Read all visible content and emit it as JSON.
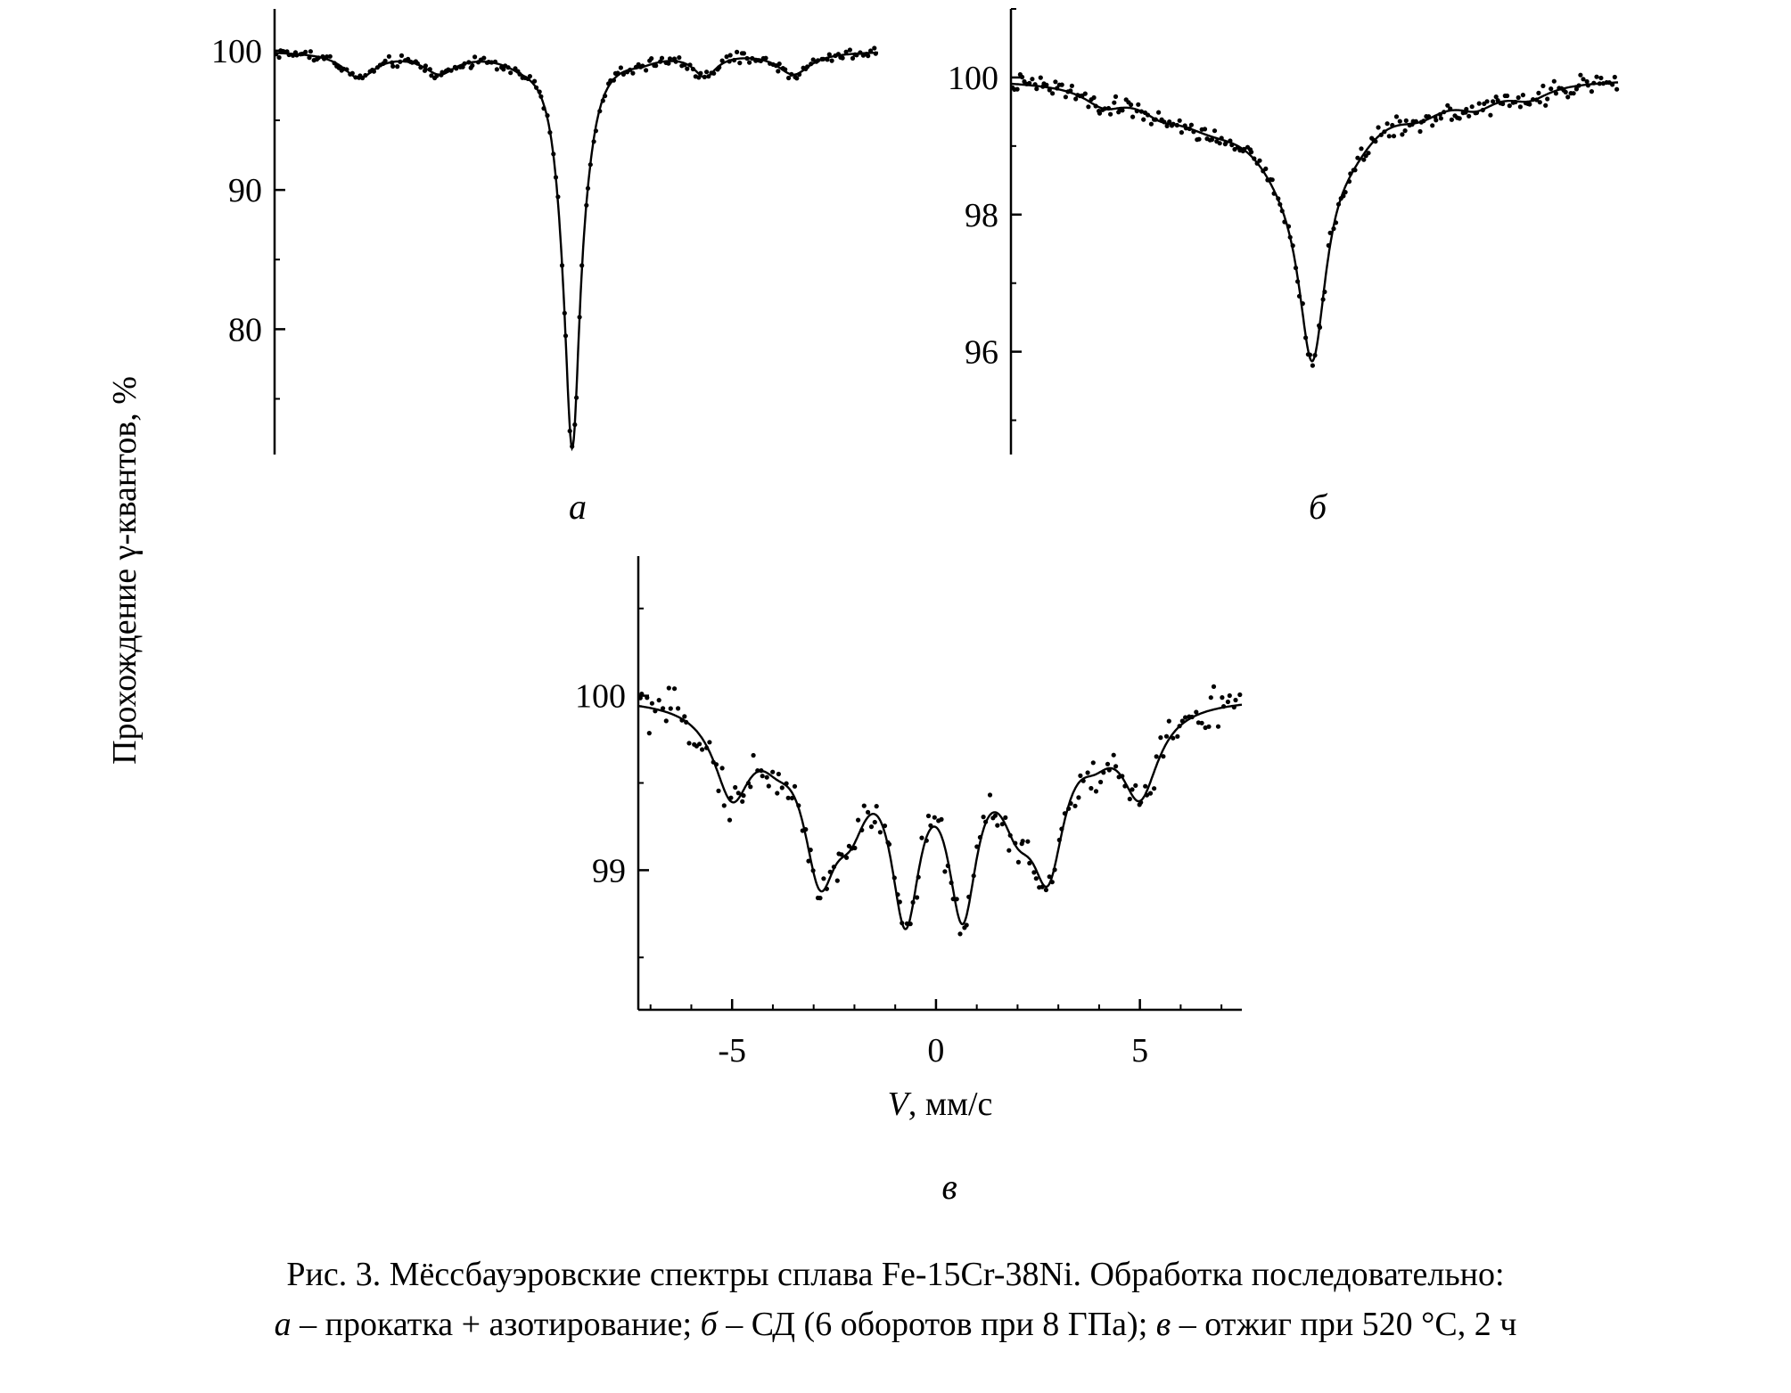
{
  "figure": {
    "shared_ylabel": "Прохождение γ-квантов, %",
    "caption": {
      "line1": "Рис. 3. Мёссбауэровские спектры сплава Fe-15Cr-38Ni. Обработка последовательно:",
      "line2_parts": [
        {
          "text": "а",
          "italic": true
        },
        {
          "text": " – прокатка + азотирование; ",
          "italic": false
        },
        {
          "text": "б",
          "italic": true
        },
        {
          "text": " – СД (6 оборотов при 8 ГПа); ",
          "italic": false
        },
        {
          "text": "в",
          "italic": true
        },
        {
          "text": " – отжиг при 520 °С, 2 ч",
          "italic": false
        }
      ]
    }
  },
  "chart_data": [
    {
      "type": "scatter",
      "panel": "а",
      "xlabel": "",
      "ylabel": "Прохождение γ-квантов, %",
      "xlim": [
        -7.5,
        7.5
      ],
      "ylim": [
        71,
        103
      ],
      "yticks": [
        80,
        90,
        100
      ],
      "ytick_labels": [
        "80",
        "90",
        "100"
      ],
      "xticks": [],
      "fit": {
        "baseline": 100,
        "lines": [
          {
            "x": -0.1,
            "depth": 26.0,
            "width": 0.24
          },
          {
            "x": -0.35,
            "depth": 2.6,
            "width": 0.3
          },
          {
            "x": 0.25,
            "depth": 2.0,
            "width": 0.3
          },
          {
            "x": -5.4,
            "depth": 1.8,
            "width": 0.5
          },
          {
            "x": -3.4,
            "depth": 1.4,
            "width": 0.5
          },
          {
            "x": -1.4,
            "depth": 0.4,
            "width": 0.5
          },
          {
            "x": 3.2,
            "depth": 1.6,
            "width": 0.35
          },
          {
            "x": 5.4,
            "depth": 1.6,
            "width": 0.5
          },
          {
            "x": 1.6,
            "depth": 0.4,
            "width": 0.5
          }
        ]
      },
      "scatter": {
        "n": 220,
        "noise": 0.35
      }
    },
    {
      "type": "scatter",
      "panel": "б",
      "xlabel": "",
      "ylabel": "",
      "xlim": [
        -7.5,
        7.5
      ],
      "ylim": [
        94.5,
        101.0
      ],
      "yticks": [
        96,
        98,
        100
      ],
      "ytick_labels": [
        "96",
        "98",
        "100"
      ],
      "xticks": [],
      "fit": {
        "baseline": 100,
        "lines": [
          {
            "x": -0.05,
            "depth": 3.1,
            "width": 0.42
          },
          {
            "x": -0.7,
            "depth": 0.9,
            "width": 1.1
          },
          {
            "x": 0.9,
            "depth": 0.5,
            "width": 0.9
          },
          {
            "x": -2.6,
            "depth": 0.45,
            "width": 1.3
          },
          {
            "x": 2.6,
            "depth": 0.3,
            "width": 0.8
          },
          {
            "x": -5.2,
            "depth": 0.25,
            "width": 0.6
          },
          {
            "x": -3.8,
            "depth": 0.2,
            "width": 0.6
          },
          {
            "x": 4.0,
            "depth": 0.25,
            "width": 0.6
          },
          {
            "x": 5.3,
            "depth": 0.2,
            "width": 0.6
          }
        ]
      },
      "scatter": {
        "n": 240,
        "noise": 0.12
      }
    },
    {
      "type": "scatter",
      "panel": "в",
      "xlabel": "V, мм/с",
      "ylabel": "",
      "xlim": [
        -7.3,
        7.5
      ],
      "ylim": [
        98.2,
        100.8
      ],
      "yticks": [
        99,
        100
      ],
      "ytick_labels": [
        "99",
        "100"
      ],
      "xticks": [
        -5,
        0,
        5
      ],
      "xtick_labels": [
        "-5",
        "0",
        "5"
      ],
      "fit": {
        "baseline": 100,
        "lines": [
          {
            "x": -5.0,
            "depth": 0.5,
            "width": 0.55
          },
          {
            "x": -2.85,
            "depth": 0.82,
            "width": 0.5
          },
          {
            "x": -2.1,
            "depth": 0.45,
            "width": 0.55
          },
          {
            "x": -0.75,
            "depth": 1.08,
            "width": 0.45
          },
          {
            "x": 0.65,
            "depth": 1.05,
            "width": 0.45
          },
          {
            "x": 2.75,
            "depth": 0.8,
            "width": 0.5
          },
          {
            "x": 2.0,
            "depth": 0.45,
            "width": 0.55
          },
          {
            "x": 5.0,
            "depth": 0.5,
            "width": 0.55
          },
          {
            "x": -3.9,
            "depth": 0.15,
            "width": 0.5
          },
          {
            "x": 3.9,
            "depth": 0.15,
            "width": 0.5
          }
        ]
      },
      "scatter": {
        "n": 190,
        "noise": 0.1
      }
    }
  ]
}
